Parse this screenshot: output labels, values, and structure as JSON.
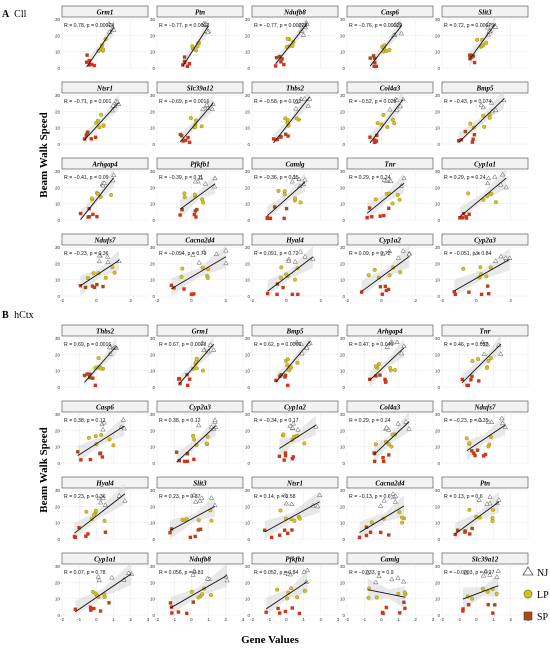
{
  "figure": {
    "ylabel": "Beam Walk Speed",
    "xlabel": "Gene Values",
    "legend": [
      {
        "label": "NJ",
        "shape": "triangle",
        "color": "#ffffff",
        "stroke": "#555555"
      },
      {
        "label": "LP",
        "shape": "circle",
        "color": "#d2c227",
        "stroke": "#8a7e10"
      },
      {
        "label": "SP",
        "shape": "square",
        "color": "#a8491c",
        "stroke": "#6e2c0e"
      }
    ],
    "colors": {
      "strip_bg": "#f2f2f2",
      "strip_border": "#444444",
      "grid": "#e8e8e8",
      "fit_line": "#111111",
      "ci_band": "#d6d6d6",
      "nj": "#ffffff",
      "lp": "#d2c227",
      "sp": "#a8491c",
      "sp_lower": "#d23418"
    }
  },
  "chart_data": [
    {
      "type": "scatter",
      "panel_letter": "A",
      "panel_name": "Cll",
      "ylim": [
        0,
        30
      ],
      "xlim": [
        -2,
        3
      ],
      "y_ticks": [
        0,
        10,
        20,
        30
      ],
      "x_ticks": [
        -2,
        0,
        2
      ],
      "grid": true,
      "fit": "linear regression with confidence band",
      "facets": [
        {
          "gene": "Grm1",
          "stat": "R = 0.78, p = 0.00014",
          "r": 0.78
        },
        {
          "gene": "Ptn",
          "stat": "R = −0.77, p = 0.0002",
          "r": -0.77
        },
        {
          "gene": "Ndufb8",
          "stat": "R = −0.77, p = 0.00021",
          "r": -0.77
        },
        {
          "gene": "Casp6",
          "stat": "R = −0.76, p = 0.00029",
          "r": -0.76
        },
        {
          "gene": "Slit3",
          "stat": "R = 0.72, p = 0.00079",
          "r": 0.72
        },
        {
          "gene": "Ntsr1",
          "stat": "R = −0.71, p = 0.001",
          "r": -0.71
        },
        {
          "gene": "Slc39a12",
          "stat": "R = −0.69, p = 0.0016",
          "r": -0.69
        },
        {
          "gene": "Thbs2",
          "stat": "R = −0.58, p = 0.012",
          "r": -0.58
        },
        {
          "gene": "Col4a3",
          "stat": "R = −0.52, p = 0.028",
          "r": -0.52
        },
        {
          "gene": "Bmp5",
          "stat": "R = −0.43, p = 0.074",
          "r": -0.43
        },
        {
          "gene": "Arhgap4",
          "stat": "R = −0.41, p = 0.09",
          "r": -0.41
        },
        {
          "gene": "Pfkfb1",
          "stat": "R = −0.39, p = 0.11",
          "r": -0.39
        },
        {
          "gene": "Camlg",
          "stat": "R = −0.36, p = 0.15",
          "r": -0.36
        },
        {
          "gene": "Tnr",
          "stat": "R = 0.29, p = 0.24",
          "r": 0.29
        },
        {
          "gene": "Cyp1a1",
          "stat": "R = 0.29, p = 0.24",
          "r": 0.29
        },
        {
          "gene": "Ndufs7",
          "stat": "R = −0.23, p = 0.36",
          "r": -0.23
        },
        {
          "gene": "Cacna2d4",
          "stat": "R = −0.094, p = 0.71",
          "r": -0.094
        },
        {
          "gene": "Hyal4",
          "stat": "R = 0.091, p = 0.72",
          "r": 0.091
        },
        {
          "gene": "Cyp1a2",
          "stat": "R = 0.09, p = 0.72",
          "r": 0.09
        },
        {
          "gene": "Cyp2a3",
          "stat": "R = −0.051, p = 0.84",
          "r": -0.051
        }
      ]
    },
    {
      "type": "scatter",
      "panel_letter": "B",
      "panel_name": "hCtx",
      "ylim": [
        0,
        30
      ],
      "xlim": [
        -2,
        3
      ],
      "y_ticks": [
        0,
        10,
        20,
        30
      ],
      "x_ticks": [
        -2,
        -1,
        0,
        1,
        2,
        3
      ],
      "grid": true,
      "fit": "linear regression with confidence band",
      "facets": [
        {
          "gene": "Thbs2",
          "stat": "R = 0.69, p = 0.0016",
          "r": 0.69
        },
        {
          "gene": "Grm1",
          "stat": "R = 0.67, p = 0.0023",
          "r": 0.67
        },
        {
          "gene": "Bmp5",
          "stat": "R = 0.62, p = 0.0066",
          "r": 0.62
        },
        {
          "gene": "Arhgap4",
          "stat": "R = 0.47, p = 0.049",
          "r": 0.47
        },
        {
          "gene": "Tnr",
          "stat": "R = 0.46, p = 0.057",
          "r": 0.46
        },
        {
          "gene": "Casp6",
          "stat": "R = 0.38, p = 0.12",
          "r": 0.38
        },
        {
          "gene": "Cyp2a3",
          "stat": "R = 0.38, p = 0.12",
          "r": 0.38
        },
        {
          "gene": "Cyp1a2",
          "stat": "R = −0.34, p = 0.17",
          "r": -0.34
        },
        {
          "gene": "Col4a3",
          "stat": "R = 0.29, p = 0.24",
          "r": 0.29
        },
        {
          "gene": "Ndufs7",
          "stat": "R = −0.23, p = 0.35",
          "r": -0.23
        },
        {
          "gene": "Hyal4",
          "stat": "R = 0.23, p = 0.36",
          "r": 0.23
        },
        {
          "gene": "Slit3",
          "stat": "R = 0.23, p = 0.37",
          "r": 0.23
        },
        {
          "gene": "Ntsr1",
          "stat": "R = 0.14, p = 0.58",
          "r": 0.14
        },
        {
          "gene": "Cacna2d4",
          "stat": "R = −0.13, p = 0.6",
          "r": -0.13
        },
        {
          "gene": "Ptn",
          "stat": "R = 0.13, p = 0.6",
          "r": 0.13
        },
        {
          "gene": "Cyp1a1",
          "stat": "R = 0.07, p = 0.78",
          "r": 0.07
        },
        {
          "gene": "Ndufb8",
          "stat": "R = 0.056, p = 0.83",
          "r": 0.056
        },
        {
          "gene": "Pfkfb1",
          "stat": "R = 0.052, p = 0.84",
          "r": 0.052
        },
        {
          "gene": "Camlg",
          "stat": "R = −0.033, p = 0.9",
          "r": -0.033
        },
        {
          "gene": "Slc39a12",
          "stat": "R = −0.0093, p = 0.97",
          "r": -0.0093
        }
      ]
    }
  ]
}
